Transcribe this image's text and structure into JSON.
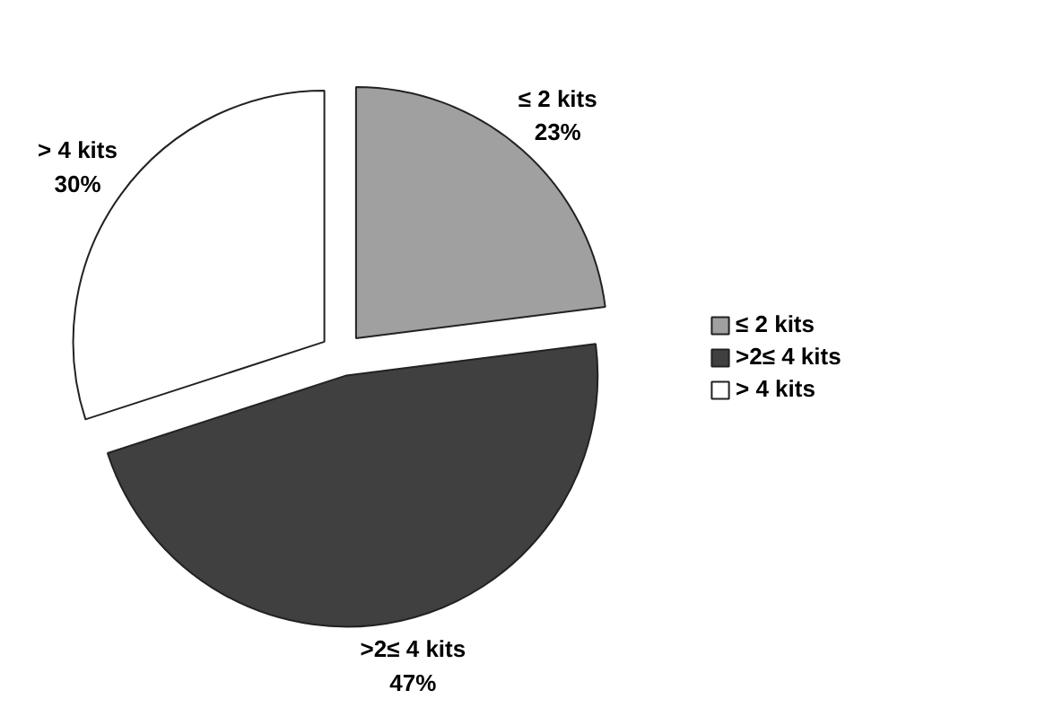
{
  "chart_data": {
    "type": "pie",
    "categories": [
      "≤ 2 kits",
      ">2≤ 4 kits",
      "> 4 kits"
    ],
    "values": [
      23,
      47,
      30
    ],
    "value_labels": [
      "23%",
      "47%",
      "30%"
    ],
    "colors": [
      "#a0a0a0",
      "#404040",
      "#ffffff"
    ],
    "legend": "right"
  }
}
